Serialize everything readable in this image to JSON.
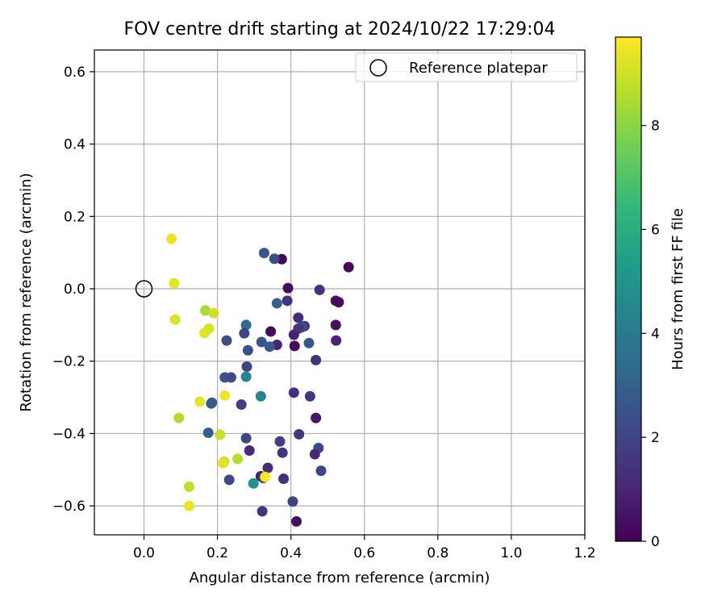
{
  "chart_data": {
    "type": "scatter",
    "title": "FOV centre drift starting at 2024/10/22 17:29:04",
    "xlabel": "Angular distance from reference (arcmin)",
    "ylabel": "Rotation from reference (arcmin)",
    "xlim": [
      -0.135,
      1.2
    ],
    "ylim": [
      -0.68,
      0.66
    ],
    "xticks": [
      0.0,
      0.2,
      0.4,
      0.6,
      0.8,
      1.0,
      1.2
    ],
    "yticks": [
      -0.6,
      -0.4,
      -0.2,
      0.0,
      0.2,
      0.4,
      0.6
    ],
    "xtick_labels": [
      "0.0",
      "0.2",
      "0.4",
      "0.6",
      "0.8",
      "1.0",
      "1.2"
    ],
    "ytick_labels": [
      "−0.6",
      "−0.4",
      "−0.2",
      "0.0",
      "0.2",
      "0.4",
      "0.6"
    ],
    "grid": true,
    "legend": {
      "placement": "top-right",
      "label": "Reference platepar"
    },
    "reference_point": {
      "x": 0.0,
      "y": 0.0
    },
    "colorbar": {
      "label": "Hours from first FF file",
      "colormap": "viridis",
      "range": [
        0,
        9.7
      ],
      "ticks": [
        0,
        2,
        4,
        6,
        8
      ],
      "tick_labels": [
        "0",
        "2",
        "4",
        "6",
        "8"
      ]
    },
    "points": [
      {
        "x": 0.375,
        "y": 0.082,
        "h": 0.1
      },
      {
        "x": 0.557,
        "y": 0.06,
        "h": 0.2
      },
      {
        "x": 0.392,
        "y": 0.002,
        "h": 0.3
      },
      {
        "x": 0.478,
        "y": -0.003,
        "h": 1.3
      },
      {
        "x": 0.522,
        "y": -0.033,
        "h": 0.5
      },
      {
        "x": 0.53,
        "y": -0.037,
        "h": 0.3
      },
      {
        "x": 0.39,
        "y": -0.033,
        "h": 1.4
      },
      {
        "x": 0.42,
        "y": -0.08,
        "h": 1.2
      },
      {
        "x": 0.522,
        "y": -0.1,
        "h": 0.4
      },
      {
        "x": 0.437,
        "y": -0.103,
        "h": 1.6
      },
      {
        "x": 0.43,
        "y": -0.106,
        "h": 2.2
      },
      {
        "x": 0.42,
        "y": -0.11,
        "h": 1.5
      },
      {
        "x": 0.345,
        "y": -0.118,
        "h": 0.2
      },
      {
        "x": 0.408,
        "y": -0.127,
        "h": 0.9
      },
      {
        "x": 0.523,
        "y": -0.143,
        "h": 1.0
      },
      {
        "x": 0.449,
        "y": -0.15,
        "h": 2.6
      },
      {
        "x": 0.41,
        "y": -0.158,
        "h": 0.2
      },
      {
        "x": 0.362,
        "y": -0.155,
        "h": 1.0
      },
      {
        "x": 0.468,
        "y": -0.197,
        "h": 1.4
      },
      {
        "x": 0.327,
        "y": 0.099,
        "h": 2.6
      },
      {
        "x": 0.355,
        "y": 0.083,
        "h": 2.3
      },
      {
        "x": 0.362,
        "y": -0.04,
        "h": 3.0
      },
      {
        "x": 0.278,
        "y": -0.1,
        "h": 3.3
      },
      {
        "x": 0.273,
        "y": -0.123,
        "h": 2.0
      },
      {
        "x": 0.225,
        "y": -0.143,
        "h": 2.3
      },
      {
        "x": 0.32,
        "y": -0.147,
        "h": 2.5
      },
      {
        "x": 0.342,
        "y": -0.16,
        "h": 2.7
      },
      {
        "x": 0.283,
        "y": -0.17,
        "h": 2.4
      },
      {
        "x": 0.28,
        "y": -0.215,
        "h": 2.0
      },
      {
        "x": 0.22,
        "y": -0.245,
        "h": 2.5
      },
      {
        "x": 0.237,
        "y": -0.245,
        "h": 2.3
      },
      {
        "x": 0.278,
        "y": -0.243,
        "h": 4.4
      },
      {
        "x": 0.318,
        "y": -0.297,
        "h": 4.4
      },
      {
        "x": 0.408,
        "y": -0.287,
        "h": 1.3
      },
      {
        "x": 0.452,
        "y": -0.297,
        "h": 1.6
      },
      {
        "x": 0.185,
        "y": -0.315,
        "h": 3.0
      },
      {
        "x": 0.183,
        "y": -0.317,
        "h": 2.8
      },
      {
        "x": 0.265,
        "y": -0.32,
        "h": 1.8
      },
      {
        "x": 0.468,
        "y": -0.357,
        "h": 0.6
      },
      {
        "x": 0.175,
        "y": -0.398,
        "h": 2.9
      },
      {
        "x": 0.422,
        "y": -0.402,
        "h": 1.6
      },
      {
        "x": 0.278,
        "y": -0.413,
        "h": 2.1
      },
      {
        "x": 0.37,
        "y": -0.422,
        "h": 1.8
      },
      {
        "x": 0.475,
        "y": -0.44,
        "h": 2.2
      },
      {
        "x": 0.287,
        "y": -0.447,
        "h": 1.2
      },
      {
        "x": 0.377,
        "y": -0.453,
        "h": 1.5
      },
      {
        "x": 0.465,
        "y": -0.457,
        "h": 1.1
      },
      {
        "x": 0.337,
        "y": -0.495,
        "h": 1.2
      },
      {
        "x": 0.482,
        "y": -0.503,
        "h": 2.0
      },
      {
        "x": 0.318,
        "y": -0.518,
        "h": 0.9
      },
      {
        "x": 0.325,
        "y": -0.523,
        "h": 1.4
      },
      {
        "x": 0.232,
        "y": -0.528,
        "h": 2.1
      },
      {
        "x": 0.38,
        "y": -0.525,
        "h": 1.3
      },
      {
        "x": 0.298,
        "y": -0.538,
        "h": 4.9
      },
      {
        "x": 0.405,
        "y": -0.588,
        "h": 2.0
      },
      {
        "x": 0.322,
        "y": -0.615,
        "h": 1.5
      },
      {
        "x": 0.415,
        "y": -0.643,
        "h": 0.4
      },
      {
        "x": 0.075,
        "y": 0.138,
        "h": 9.4
      },
      {
        "x": 0.082,
        "y": 0.015,
        "h": 9.3
      },
      {
        "x": 0.085,
        "y": -0.085,
        "h": 9.2
      },
      {
        "x": 0.167,
        "y": -0.06,
        "h": 8.4
      },
      {
        "x": 0.19,
        "y": -0.067,
        "h": 9.0
      },
      {
        "x": 0.177,
        "y": -0.11,
        "h": 9.1
      },
      {
        "x": 0.165,
        "y": -0.122,
        "h": 9.2
      },
      {
        "x": 0.152,
        "y": -0.312,
        "h": 9.4
      },
      {
        "x": 0.22,
        "y": -0.295,
        "h": 9.5
      },
      {
        "x": 0.095,
        "y": -0.357,
        "h": 8.6
      },
      {
        "x": 0.207,
        "y": -0.403,
        "h": 8.9
      },
      {
        "x": 0.255,
        "y": -0.47,
        "h": 8.6
      },
      {
        "x": 0.218,
        "y": -0.478,
        "h": 8.8
      },
      {
        "x": 0.215,
        "y": -0.482,
        "h": 9.3
      },
      {
        "x": 0.33,
        "y": -0.52,
        "h": 9.6
      },
      {
        "x": 0.123,
        "y": -0.547,
        "h": 8.8
      },
      {
        "x": 0.123,
        "y": -0.6,
        "h": 9.4
      }
    ]
  }
}
